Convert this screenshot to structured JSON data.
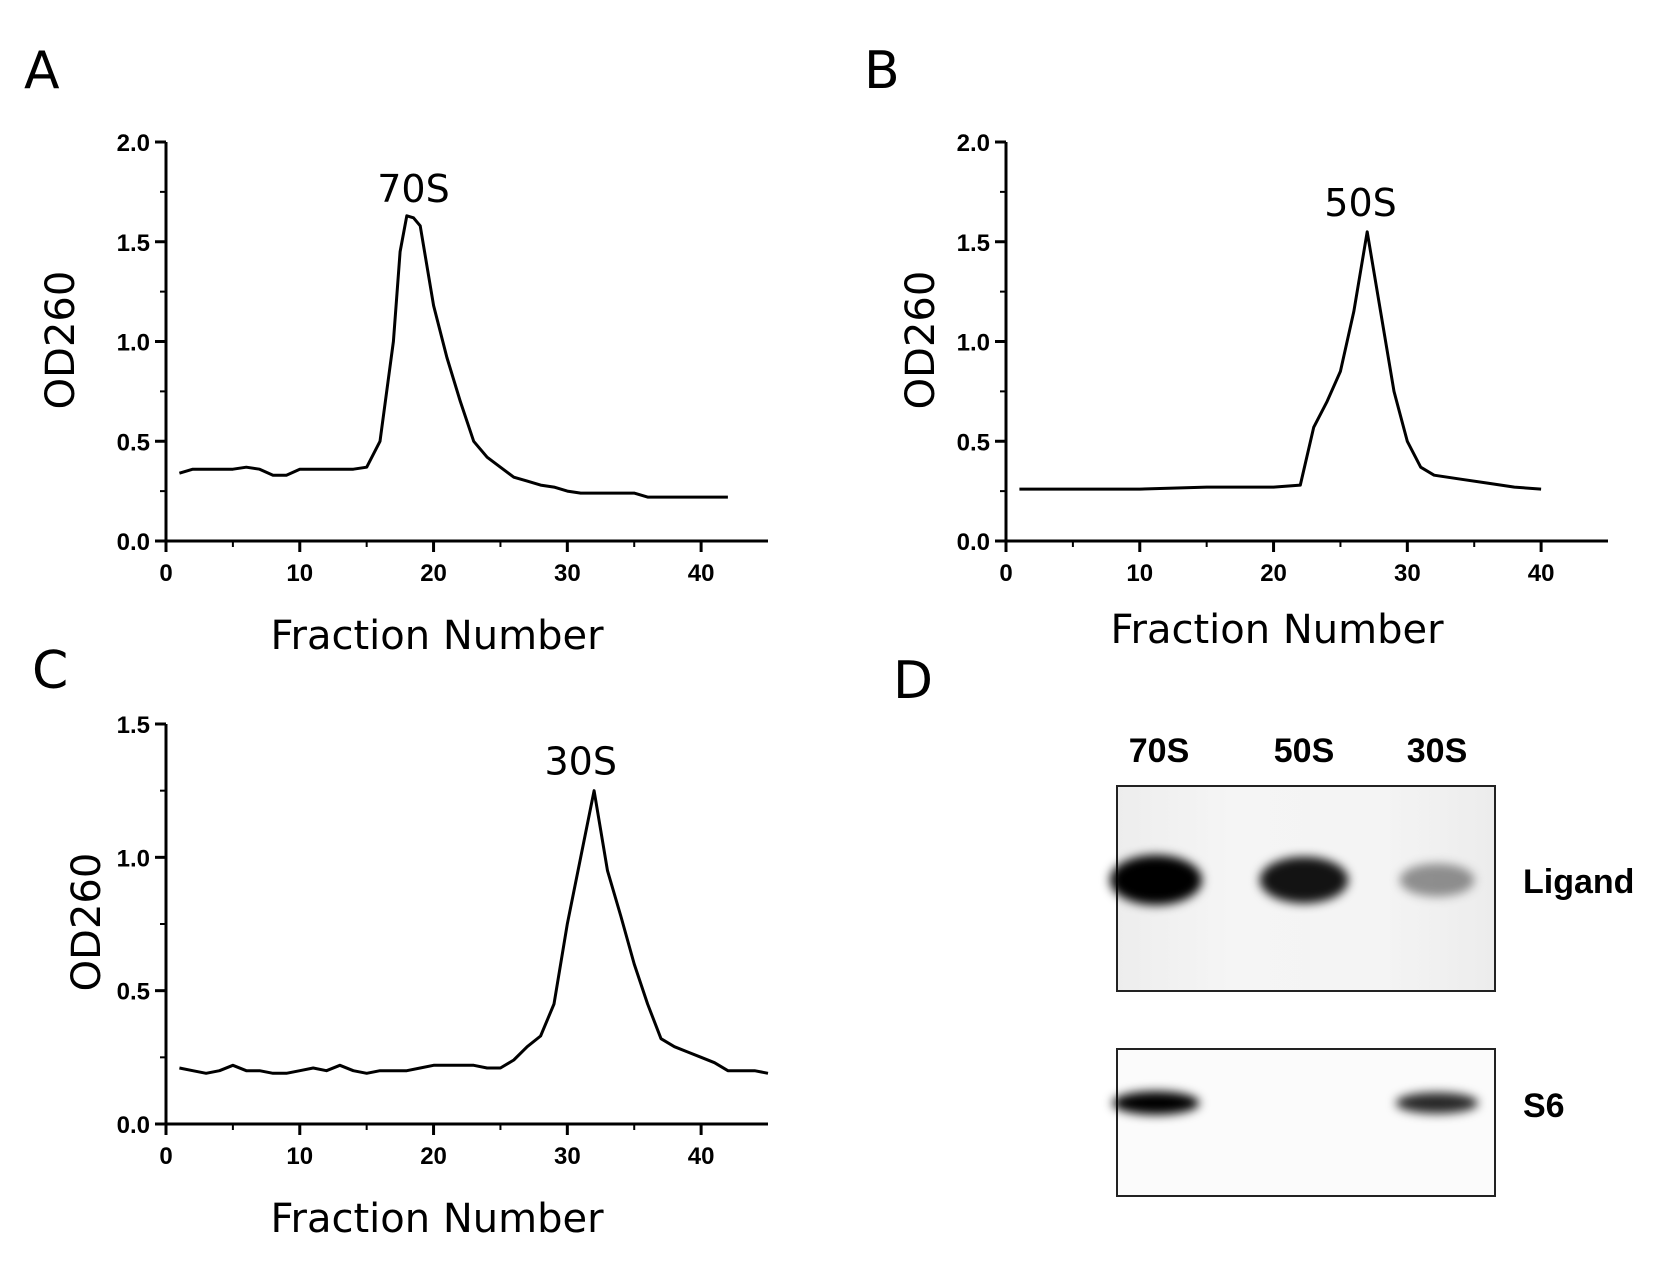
{
  "chart_data": [
    {
      "panel": "A",
      "type": "line",
      "xlabel": "Fraction Number",
      "ylabel": "OD260",
      "xlim": [
        0,
        45
      ],
      "ylim": [
        0,
        2.0
      ],
      "xticks": [
        "0",
        "10",
        "20",
        "30",
        "40"
      ],
      "yticks": [
        "0.0",
        "0.5",
        "1.0",
        "1.5",
        "2.0"
      ],
      "annotation": {
        "text": "70S",
        "x": 18.5,
        "y": 1.62
      },
      "series": [
        {
          "x": [
            1,
            2,
            3,
            4,
            5,
            6,
            7,
            8,
            9,
            10,
            11,
            12,
            13,
            14,
            15,
            16,
            17,
            17.5,
            18,
            18.5,
            19,
            20,
            21,
            22,
            23,
            24,
            25,
            26,
            27,
            28,
            29,
            30,
            31,
            32,
            33,
            34,
            35,
            36,
            38,
            40,
            42
          ],
          "y": [
            0.34,
            0.36,
            0.36,
            0.36,
            0.36,
            0.37,
            0.36,
            0.33,
            0.33,
            0.36,
            0.36,
            0.36,
            0.36,
            0.36,
            0.37,
            0.5,
            1.0,
            1.45,
            1.63,
            1.62,
            1.58,
            1.18,
            0.92,
            0.7,
            0.5,
            0.42,
            0.37,
            0.32,
            0.3,
            0.28,
            0.27,
            0.25,
            0.24,
            0.24,
            0.24,
            0.24,
            0.24,
            0.22,
            0.22,
            0.22,
            0.22
          ]
        }
      ]
    },
    {
      "panel": "B",
      "type": "line",
      "xlabel": "Fraction Number",
      "ylabel": "OD260",
      "xlim": [
        0,
        45
      ],
      "ylim": [
        0,
        2.0
      ],
      "xticks": [
        "0",
        "10",
        "20",
        "30",
        "40"
      ],
      "yticks": [
        "0.0",
        "0.5",
        "1.0",
        "1.5",
        "2.0"
      ],
      "annotation": {
        "text": "50S",
        "x": 26.5,
        "y": 1.55
      },
      "series": [
        {
          "x": [
            1,
            5,
            10,
            15,
            20,
            22,
            23,
            24,
            25,
            26,
            27,
            28,
            29,
            30,
            31,
            32,
            34,
            36,
            38,
            40
          ],
          "y": [
            0.26,
            0.26,
            0.26,
            0.27,
            0.27,
            0.28,
            0.57,
            0.7,
            0.85,
            1.15,
            1.55,
            1.15,
            0.75,
            0.5,
            0.37,
            0.33,
            0.31,
            0.29,
            0.27,
            0.26
          ]
        }
      ]
    },
    {
      "panel": "C",
      "type": "line",
      "xlabel": "Fraction Number",
      "ylabel": "OD260",
      "xlim": [
        0,
        45
      ],
      "ylim": [
        0,
        1.5
      ],
      "xticks": [
        "0",
        "10",
        "20",
        "30",
        "40"
      ],
      "yticks": [
        "0.0",
        "0.5",
        "1.0",
        "1.5"
      ],
      "annotation": {
        "text": "30S",
        "x": 31,
        "y": 1.25
      },
      "series": [
        {
          "x": [
            1,
            2,
            3,
            4,
            5,
            6,
            7,
            8,
            9,
            10,
            11,
            12,
            13,
            14,
            15,
            16,
            17,
            18,
            19,
            20,
            21,
            22,
            23,
            24,
            25,
            26,
            27,
            28,
            29,
            30,
            31,
            32,
            33,
            34,
            35,
            36,
            37,
            38,
            39,
            40,
            41,
            42,
            43,
            44,
            45
          ],
          "y": [
            0.21,
            0.2,
            0.19,
            0.2,
            0.22,
            0.2,
            0.2,
            0.19,
            0.19,
            0.2,
            0.21,
            0.2,
            0.22,
            0.2,
            0.19,
            0.2,
            0.2,
            0.2,
            0.21,
            0.22,
            0.22,
            0.22,
            0.22,
            0.21,
            0.21,
            0.24,
            0.29,
            0.33,
            0.45,
            0.75,
            1.0,
            1.25,
            0.95,
            0.78,
            0.6,
            0.45,
            0.32,
            0.29,
            0.27,
            0.25,
            0.23,
            0.2,
            0.2,
            0.2,
            0.19
          ]
        }
      ]
    }
  ],
  "panels": {
    "a": {
      "letter": "A"
    },
    "b": {
      "letter": "B"
    },
    "c": {
      "letter": "C"
    },
    "d": {
      "letter": "D"
    }
  },
  "blot": {
    "lanes": [
      "70S",
      "50S",
      "30S"
    ],
    "rows": [
      {
        "label": "Ligand",
        "intensities": [
          1.0,
          0.85,
          0.25
        ]
      },
      {
        "label": "S6",
        "intensities": [
          0.95,
          0.0,
          0.75
        ]
      }
    ]
  },
  "colors": {
    "line": "#000000",
    "band": "#000000",
    "background": "#ffffff"
  }
}
